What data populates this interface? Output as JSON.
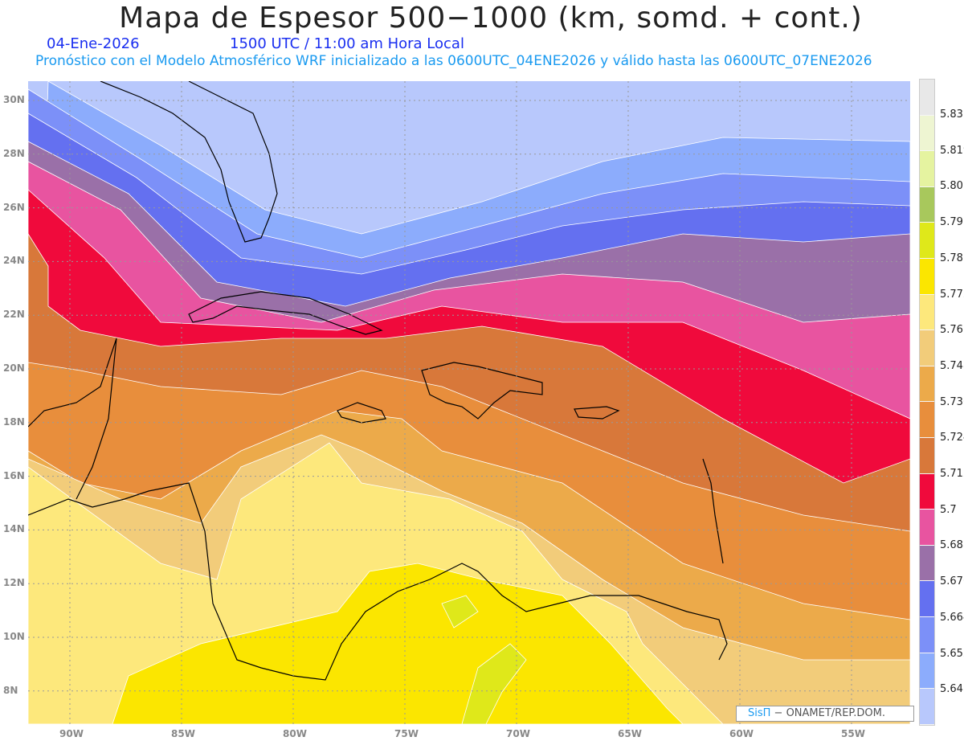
{
  "title": "Mapa de Espesor 500−1000 (km, somd. + cont.)",
  "date": "04-Ene-2026",
  "time": "1500 UTC / 11:00 am Hora Local",
  "description": "Pronóstico con el Modelo Atmosférico WRF inicializado a las 0600UTC_04ENE2026 y válido hasta las  0600UTC_07ENE2026",
  "lat_labels": [
    "30N",
    "28N",
    "26N",
    "24N",
    "22N",
    "20N",
    "18N",
    "16N",
    "14N",
    "12N",
    "10N",
    "8N"
  ],
  "lon_labels": [
    "90W",
    "85W",
    "80W",
    "75W",
    "70W",
    "65W",
    "60W",
    "55W"
  ],
  "colorbar": {
    "labels": [
      "5.831",
      "5.819",
      "5.807",
      "5.795",
      "5.783",
      "5.772",
      "5.76",
      "5.748",
      "5.736",
      "5.724",
      "5.712",
      "5.7",
      "5.688",
      "5.676",
      "5.664",
      "5.652",
      "5.64"
    ],
    "colors": [
      "#e8e8e8",
      "#eef5d2",
      "#e5f3a0",
      "#a8c85c",
      "#dfe81a",
      "#fbe600",
      "#fde87c",
      "#f2cc7a",
      "#ecaa4a",
      "#e88e3c",
      "#d8783a",
      "#f00a3c",
      "#e854a0",
      "#9a70a8",
      "#6470f0",
      "#7c90f8",
      "#8cacfc",
      "#b8c8fc"
    ]
  },
  "credit": {
    "brand": "SisΠ",
    "text": " − ONAMET/REP.DOM."
  }
}
